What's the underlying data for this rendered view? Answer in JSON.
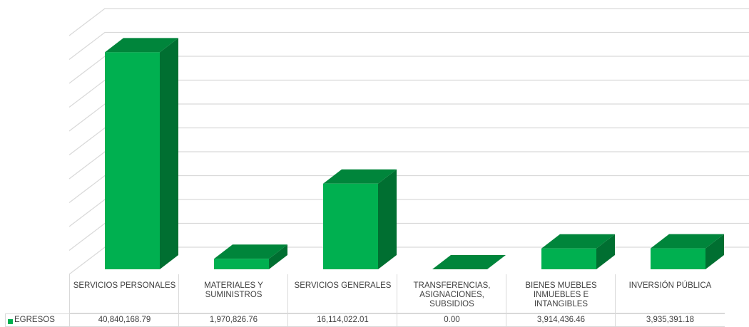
{
  "chart_data": {
    "type": "bar3d",
    "categories": [
      "SERVICIOS PERSONALES",
      "MATERIALES Y SUMINISTROS",
      "SERVICIOS GENERALES",
      "TRANSFERENCIAS, ASIGNACIONES, SUBSIDIOS",
      "BIENES MUEBLES INMUEBLES E INTANGIBLES",
      "INVERSIÓN PÚBLICA"
    ],
    "series": [
      {
        "name": "EGRESOS",
        "color": "#00b050",
        "values": [
          40840168.79,
          1970826.76,
          16114022.01,
          0.0,
          3914436.46,
          3935391.18
        ],
        "value_labels": [
          "40,840,168.79",
          "1,970,826.76",
          "16,114,022.01",
          "0.00",
          "3,914,436.46",
          "3,935,391.18"
        ]
      }
    ],
    "ylim": [
      0,
      50000000
    ],
    "yticks": [
      0,
      5000000,
      10000000,
      15000000,
      20000000,
      25000000,
      30000000,
      35000000,
      40000000,
      45000000,
      50000000
    ],
    "grid": true
  }
}
